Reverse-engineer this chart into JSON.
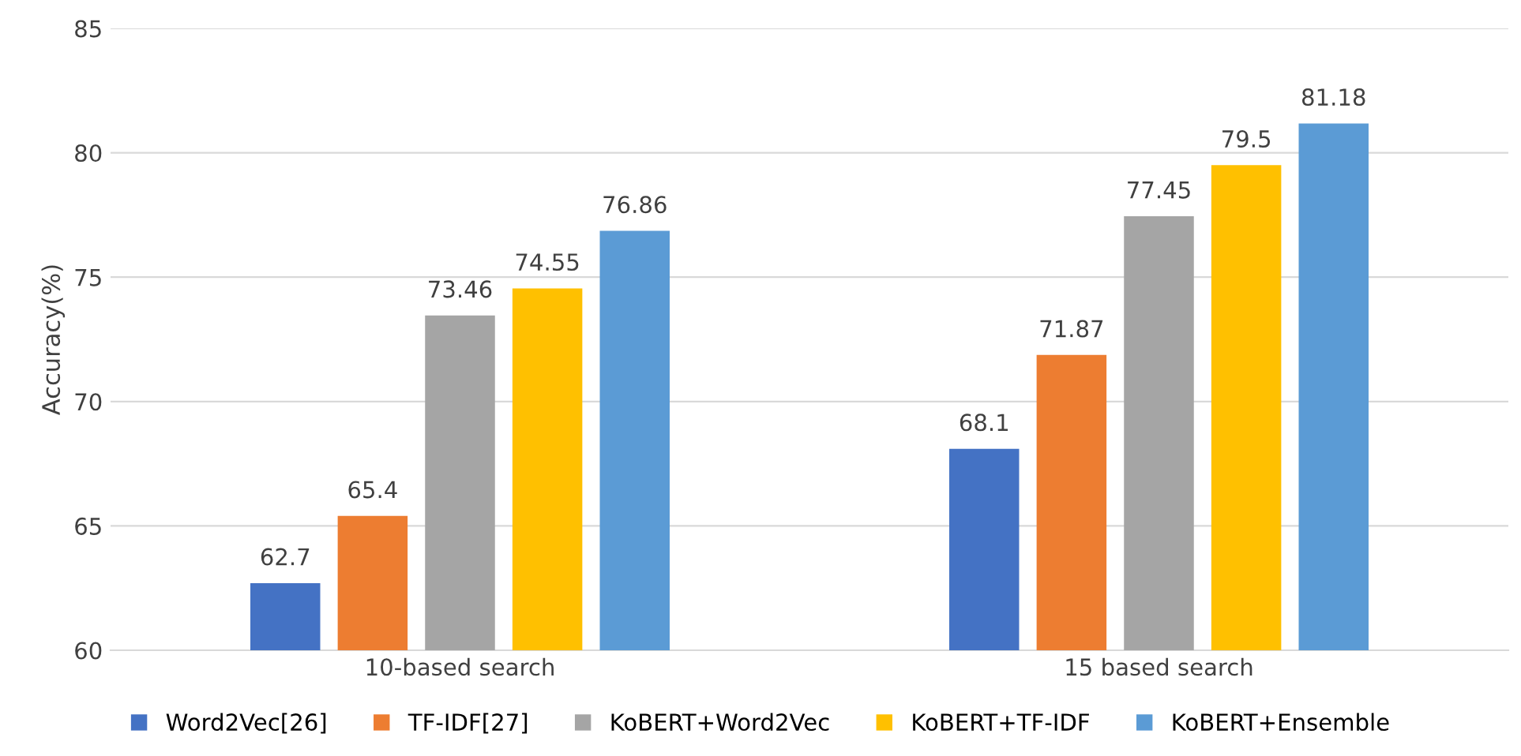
{
  "chart_data": {
    "type": "bar",
    "ylabel": "Accuracy(%)",
    "categories": [
      "10-based search",
      "15 based search"
    ],
    "series": [
      {
        "name": "Word2Vec[26]",
        "color": "#4472c4",
        "values": [
          62.7,
          68.1
        ]
      },
      {
        "name": "TF-IDF[27]",
        "color": "#ed7d31",
        "values": [
          65.4,
          71.87
        ]
      },
      {
        "name": "KoBERT+Word2Vec",
        "color": "#a5a5a5",
        "values": [
          73.46,
          77.45
        ]
      },
      {
        "name": "KoBERT+TF-IDF",
        "color": "#ffc000",
        "values": [
          74.55,
          79.5
        ]
      },
      {
        "name": "KoBERT+Ensemble",
        "color": "#5b9bd5",
        "values": [
          76.86,
          81.18
        ]
      }
    ],
    "ylim": [
      60,
      85
    ],
    "yticks": [
      60,
      65,
      70,
      75,
      80,
      85
    ],
    "grid": "y",
    "legend": "bottom",
    "data_labels": true
  }
}
